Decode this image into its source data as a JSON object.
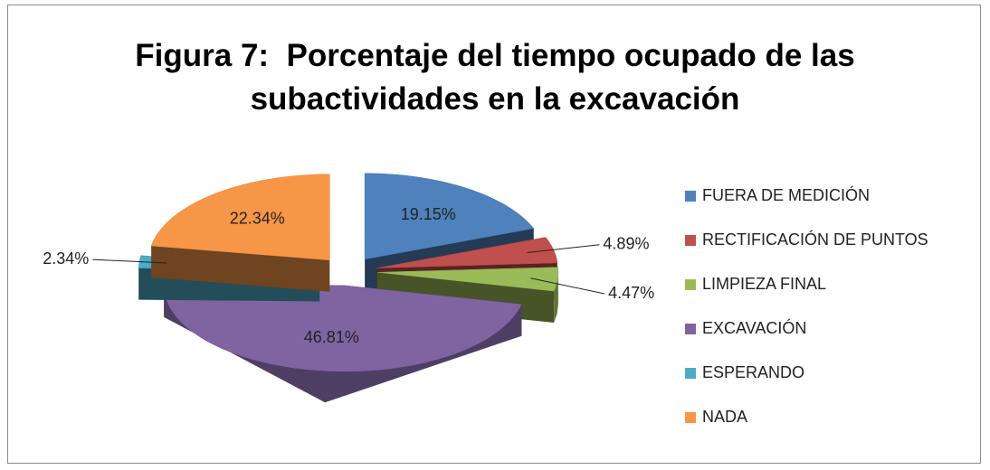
{
  "chart_data": {
    "type": "pie",
    "title": "Figura 7:  Porcentaje del tiempo ocupado de las subactividades en la excavación",
    "categories": [
      "FUERA DE MEDICIÓN",
      "RECTIFICACIÓN DE PUNTOS",
      "LIMPIEZA FINAL",
      "EXCAVACIÓN",
      "ESPERANDO",
      "NADA"
    ],
    "values": [
      19.15,
      4.89,
      4.47,
      46.81,
      2.34,
      22.34
    ],
    "value_labels": [
      "19.15%",
      "4.89%",
      "4.47%",
      "46.81%",
      "2.34%",
      "22.34%"
    ],
    "colors": [
      "#4f81bd",
      "#c0504d",
      "#9bbb59",
      "#8064a2",
      "#4bacc6",
      "#f79646"
    ],
    "legend": "right"
  }
}
